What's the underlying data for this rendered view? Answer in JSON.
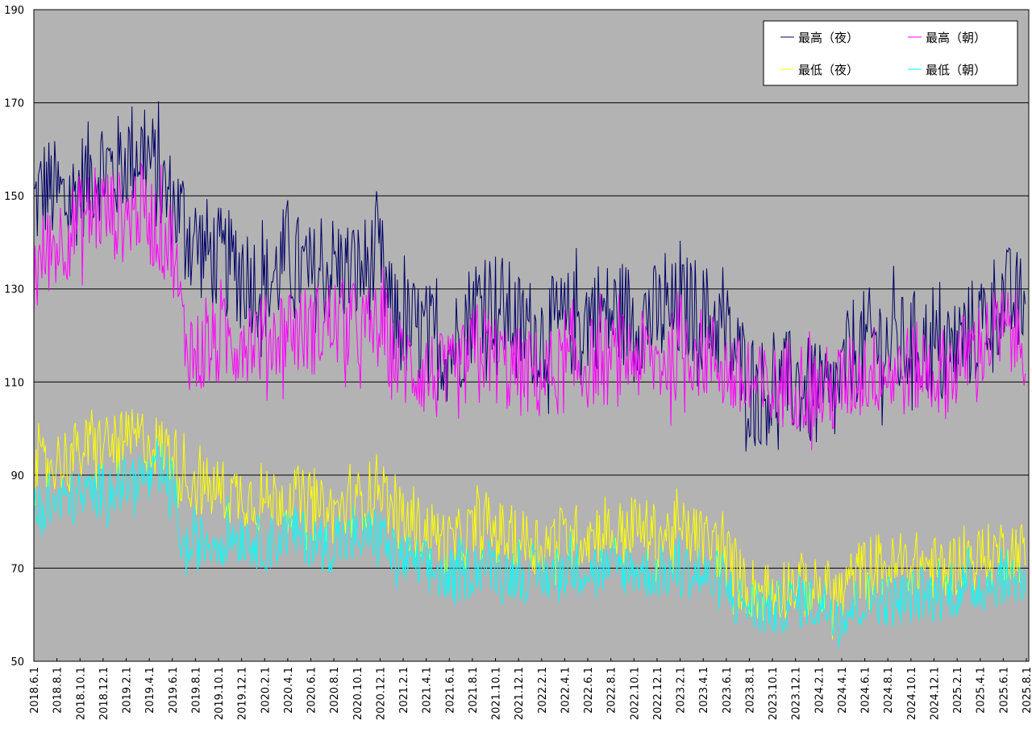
{
  "chart_data": {
    "type": "line",
    "title": "",
    "xlabel": "",
    "ylabel": "",
    "ylim": [
      50,
      190
    ],
    "yticks": [
      50,
      70,
      90,
      110,
      130,
      150,
      170,
      190
    ],
    "ytick_labels": [
      "50",
      "70",
      "90",
      "110",
      "130",
      "150",
      "170",
      "190"
    ],
    "grid": true,
    "legend_position": "top-right",
    "background": "#b3b3b3",
    "xtick_labels": [
      "2018.6.1",
      "2018.8.1",
      "2018.10.1",
      "2018.12.1",
      "2019.2.1",
      "2019.4.1",
      "2019.6.1",
      "2019.8.1",
      "2019.10.1",
      "2019.12.1",
      "2020.2.1",
      "2020.4.1",
      "2020.6.1",
      "2020.8.1",
      "2020.10.1",
      "2020.12.1",
      "2021.2.1",
      "2021.4.1",
      "2021.6.1",
      "2021.8.1",
      "2021.10.1",
      "2021.12.1",
      "2022.2.1",
      "2022.4.1",
      "2022.6.1",
      "2022.8.1",
      "2022.10.1",
      "2022.12.1",
      "2023.2.1",
      "2023.4.1",
      "2023.6.1",
      "2023.8.1",
      "2023.10.1",
      "2023.12.1",
      "2024.2.1",
      "2024.4.1",
      "2024.6.1",
      "2024.8.1",
      "2024.10.1",
      "2024.12.1",
      "2025.2.1",
      "2025.4.1",
      "2025.6.1",
      "2025.8.1"
    ],
    "series": [
      {
        "name": "最高（夜）",
        "color": "#000066",
        "spread": 12,
        "values": [
          148,
          152,
          150,
          148,
          152,
          155,
          157,
          155,
          158,
          160,
          158,
          152,
          148,
          145,
          140,
          138,
          136,
          135,
          134,
          132,
          130,
          133,
          138,
          134,
          132,
          133,
          135,
          134,
          133,
          135,
          136,
          124,
          122,
          121,
          120,
          118,
          117,
          120,
          126,
          128,
          127,
          125,
          122,
          121,
          120,
          121,
          122,
          123,
          124,
          125,
          124,
          125,
          124,
          123,
          124,
          124,
          125,
          126,
          124,
          123,
          120,
          115,
          110,
          108,
          108,
          109,
          110,
          108,
          106,
          106,
          110,
          117,
          118,
          119,
          118,
          117,
          118,
          118,
          116,
          115,
          118,
          120,
          122,
          126,
          128,
          127,
          125
        ]
      },
      {
        "name": "最高（朝）",
        "color": "#ff00ff",
        "spread": 10,
        "values": [
          132,
          138,
          140,
          142,
          145,
          146,
          147,
          146,
          145,
          148,
          145,
          142,
          140,
          120,
          116,
          117,
          118,
          119,
          120,
          120,
          119,
          120,
          122,
          121,
          121,
          122,
          123,
          122,
          121,
          121,
          122,
          116,
          114,
          113,
          112,
          111,
          110,
          112,
          116,
          117,
          115,
          113,
          112,
          112,
          111,
          112,
          113,
          113,
          114,
          115,
          114,
          115,
          116,
          115,
          114,
          115,
          116,
          117,
          116,
          115,
          113,
          110,
          109,
          108,
          108,
          110,
          110,
          109,
          108,
          108,
          109,
          111,
          112,
          113,
          112,
          112,
          113,
          113,
          112,
          112,
          114,
          116,
          118,
          120,
          121,
          120,
          119
        ]
      },
      {
        "name": "最低（夜）",
        "color": "#ffff00",
        "spread": 7,
        "values": [
          90,
          92,
          93,
          94,
          95,
          96,
          97,
          96,
          97,
          98,
          97,
          96,
          95,
          90,
          88,
          87,
          87,
          86,
          86,
          85,
          84,
          85,
          86,
          85,
          83,
          82,
          82,
          83,
          84,
          86,
          89,
          82,
          80,
          79,
          78,
          77,
          75,
          76,
          78,
          79,
          78,
          77,
          76,
          76,
          75,
          76,
          77,
          77,
          77,
          78,
          77,
          78,
          79,
          78,
          77,
          77,
          78,
          77,
          76,
          75,
          73,
          68,
          66,
          65,
          65,
          66,
          67,
          66,
          65,
          65,
          64,
          68,
          70,
          71,
          70,
          70,
          71,
          71,
          70,
          70,
          71,
          72,
          72,
          73,
          74,
          74,
          73
        ]
      },
      {
        "name": "最低（朝）",
        "color": "#00ffff",
        "spread": 6,
        "values": [
          82,
          83,
          84,
          85,
          85,
          86,
          87,
          88,
          88,
          90,
          89,
          89,
          88,
          73,
          75,
          76,
          76,
          77,
          77,
          76,
          75,
          76,
          78,
          77,
          76,
          75,
          75,
          76,
          76,
          77,
          78,
          73,
          72,
          71,
          70,
          69,
          67,
          68,
          70,
          71,
          70,
          69,
          69,
          68,
          68,
          69,
          70,
          70,
          70,
          70,
          69,
          70,
          70,
          69,
          69,
          69,
          70,
          69,
          68,
          67,
          66,
          63,
          62,
          61,
          61,
          62,
          63,
          63,
          62,
          62,
          60,
          62,
          63,
          64,
          63,
          63,
          64,
          64,
          64,
          65,
          65,
          66,
          66,
          67,
          68,
          68,
          67
        ]
      }
    ]
  }
}
